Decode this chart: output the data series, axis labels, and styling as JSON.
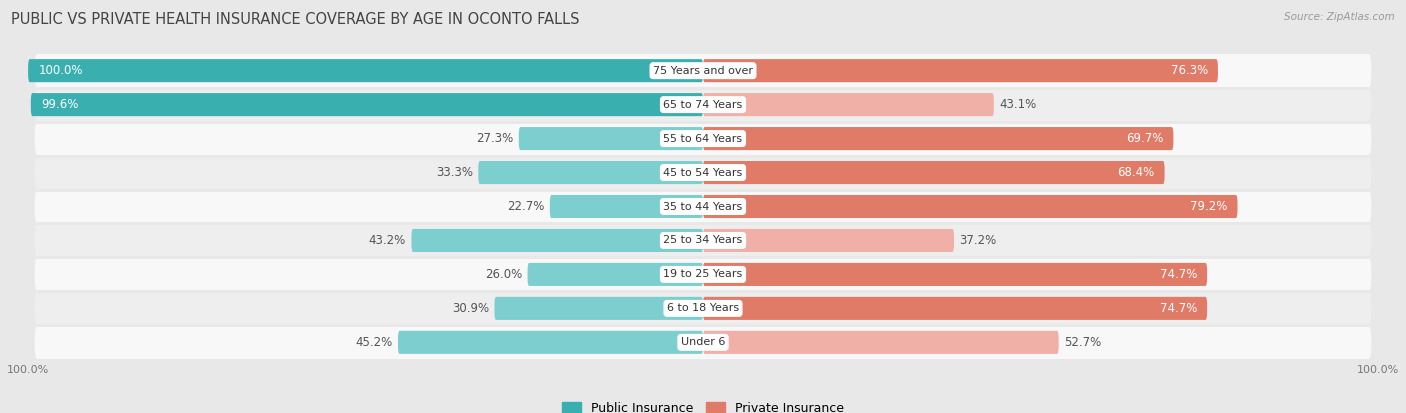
{
  "title": "PUBLIC VS PRIVATE HEALTH INSURANCE COVERAGE BY AGE IN OCONTO FALLS",
  "source": "Source: ZipAtlas.com",
  "categories": [
    "Under 6",
    "6 to 18 Years",
    "19 to 25 Years",
    "25 to 34 Years",
    "35 to 44 Years",
    "45 to 54 Years",
    "55 to 64 Years",
    "65 to 74 Years",
    "75 Years and over"
  ],
  "public_values": [
    45.2,
    30.9,
    26.0,
    43.2,
    22.7,
    33.3,
    27.3,
    99.6,
    100.0
  ],
  "private_values": [
    52.7,
    74.7,
    74.7,
    37.2,
    79.2,
    68.4,
    69.7,
    43.1,
    76.3
  ],
  "public_color_dark": "#3aafb0",
  "public_color_light": "#7dcfcf",
  "private_color_dark": "#e07b68",
  "private_color_light": "#f0b0a8",
  "bg_color": "#e8e8e8",
  "row_color_white": "#f8f8f8",
  "row_color_light": "#eeeeee",
  "label_fontsize": 8.5,
  "title_fontsize": 10.5,
  "max_value": 100.0
}
